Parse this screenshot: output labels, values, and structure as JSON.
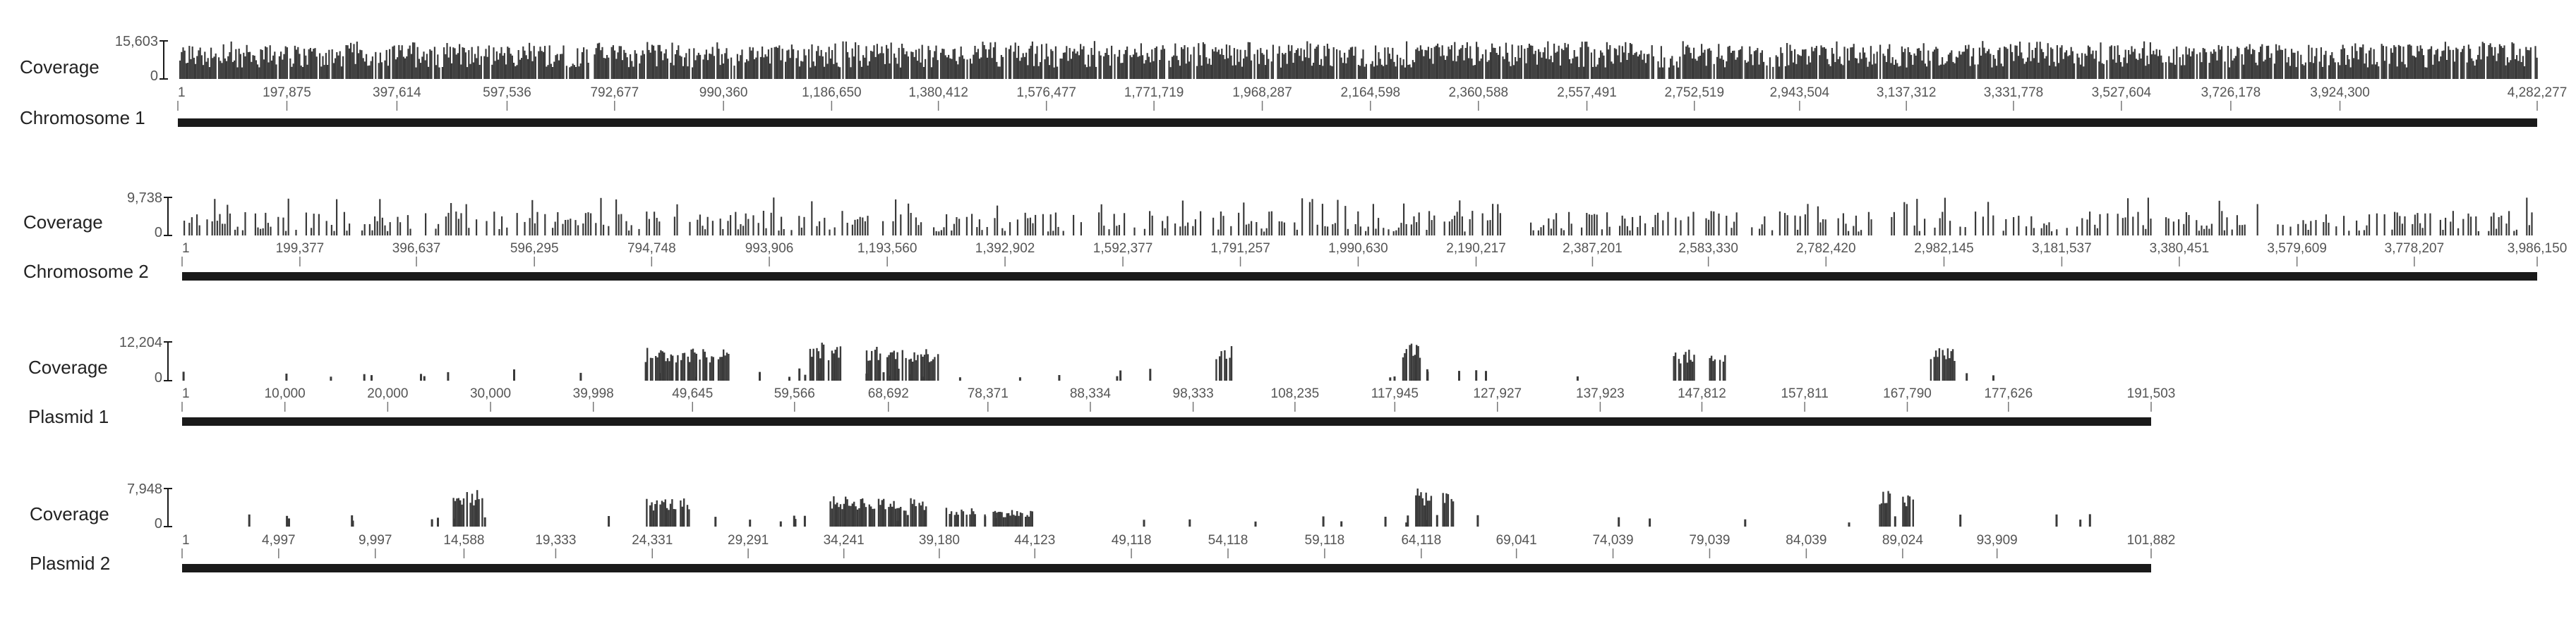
{
  "labels": {
    "coverage": "Coverage"
  },
  "colors": {
    "bars": "#3a3a3a",
    "axis": "#1a1a1a",
    "ticks": "#777777",
    "text": "#333333"
  },
  "chart_data": [
    {
      "type": "area",
      "track": "Chromosome 1",
      "coverage_label": "Coverage",
      "coverage_max_label": "15,603",
      "coverage_min_label": "0",
      "length": 4282277,
      "coverage_max": 15603,
      "density": "dense",
      "ticks": [
        "1",
        "197,875",
        "397,614",
        "597,536",
        "792,677",
        "990,360",
        "1,186,650",
        "1,380,412",
        "1,576,477",
        "1,771,719",
        "1,968,287",
        "2,164,598",
        "2,360,588",
        "2,557,491",
        "2,752,519",
        "2,943,504",
        "3,137,312",
        "3,331,778",
        "3,527,604",
        "3,726,178",
        "3,924,300",
        "4,282,277"
      ]
    },
    {
      "type": "area",
      "track": "Chromosome 2",
      "coverage_label": "Coverage",
      "coverage_max_label": "9,738",
      "coverage_min_label": "0",
      "length": 3986150,
      "coverage_max": 9738,
      "density": "medium",
      "ticks": [
        "1",
        "199,377",
        "396,637",
        "596,295",
        "794,748",
        "993,906",
        "1,193,560",
        "1,392,902",
        "1,592,377",
        "1,791,257",
        "1,990,630",
        "2,190,217",
        "2,387,201",
        "2,583,330",
        "2,782,420",
        "2,982,145",
        "3,181,537",
        "3,380,451",
        "3,579,609",
        "3,778,207",
        "3,986,150"
      ]
    },
    {
      "type": "area",
      "track": "Plasmid 1",
      "coverage_label": "Coverage",
      "coverage_max_label": "12,204",
      "coverage_min_label": "0",
      "length": 191503,
      "coverage_max": 12204,
      "density": "sparse",
      "covered_regions": [
        [
          45000,
          53500,
          0.85
        ],
        [
          61000,
          62500,
          1.0
        ],
        [
          62800,
          64000,
          0.95
        ],
        [
          66500,
          68000,
          0.9
        ],
        [
          68500,
          73500,
          0.85
        ],
        [
          100500,
          102000,
          0.9
        ],
        [
          118500,
          120500,
          1.0
        ],
        [
          145000,
          147000,
          0.8
        ],
        [
          148500,
          150000,
          0.7
        ],
        [
          170000,
          172500,
          0.9
        ]
      ],
      "ticks": [
        "1",
        "10,000",
        "20,000",
        "30,000",
        "39,998",
        "49,645",
        "59,566",
        "68,692",
        "78,371",
        "88,334",
        "98,333",
        "108,235",
        "117,945",
        "127,927",
        "137,923",
        "147,812",
        "157,811",
        "167,790",
        "177,626",
        "191,503"
      ]
    },
    {
      "type": "area",
      "track": "Plasmid 2",
      "coverage_label": "Coverage",
      "coverage_max_label": "7,948",
      "coverage_min_label": "0",
      "length": 101882,
      "coverage_max": 7948,
      "density": "sparse",
      "covered_regions": [
        [
          14000,
          15600,
          1.0
        ],
        [
          24000,
          26200,
          0.75
        ],
        [
          33500,
          35800,
          0.8
        ],
        [
          36000,
          38500,
          0.75
        ],
        [
          39500,
          41000,
          0.5
        ],
        [
          41500,
          44000,
          0.45
        ],
        [
          63800,
          64600,
          1.0
        ],
        [
          65200,
          65800,
          0.95
        ],
        [
          87800,
          88400,
          0.95
        ],
        [
          89000,
          89600,
          0.85
        ]
      ],
      "ticks": [
        "1",
        "4,997",
        "9,997",
        "14,588",
        "19,333",
        "24,331",
        "29,291",
        "34,241",
        "39,180",
        "44,123",
        "49,118",
        "54,118",
        "59,118",
        "64,118",
        "69,041",
        "74,039",
        "79,039",
        "84,039",
        "89,024",
        "93,909",
        "101,882"
      ]
    }
  ]
}
